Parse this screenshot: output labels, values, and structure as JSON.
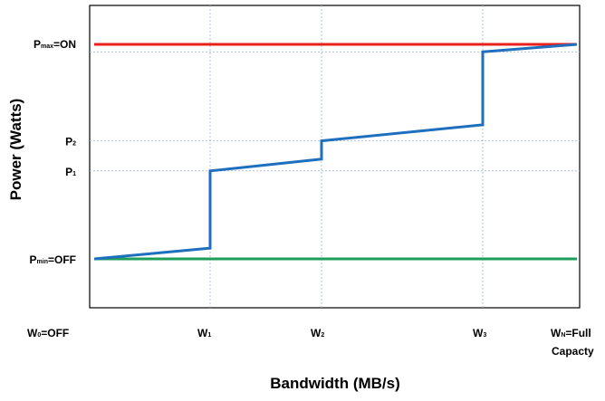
{
  "chart_data": {
    "type": "line",
    "xlabel": "Bandwidth (MB/s)",
    "ylabel": "Power (Watts)",
    "x_ticks": [
      {
        "id": "w0",
        "value": 0,
        "parts": [
          {
            "t": "W"
          },
          {
            "t": "0",
            "sub": true
          },
          {
            "t": "=OFF"
          }
        ]
      },
      {
        "id": "w1",
        "value": 1,
        "parts": [
          {
            "t": "W"
          },
          {
            "t": "1",
            "sub": true
          }
        ]
      },
      {
        "id": "w2",
        "value": 2,
        "parts": [
          {
            "t": "W"
          },
          {
            "t": "2",
            "sub": true
          }
        ]
      },
      {
        "id": "w3",
        "value": 3,
        "parts": [
          {
            "t": "W"
          },
          {
            "t": "3",
            "sub": true
          }
        ]
      },
      {
        "id": "wn",
        "value": 4,
        "parts": [
          {
            "t": "W"
          },
          {
            "t": "N",
            "sub": true
          },
          {
            "t": "=Full"
          }
        ],
        "line2": "Capacty"
      }
    ],
    "y_ticks": [
      {
        "id": "pmin",
        "value": 0,
        "parts": [
          {
            "t": "P"
          },
          {
            "t": "min",
            "sub": true
          },
          {
            "t": "=OFF"
          }
        ]
      },
      {
        "id": "p1",
        "value": 0.41,
        "parts": [
          {
            "t": "P"
          },
          {
            "t": "1",
            "sub": true
          }
        ]
      },
      {
        "id": "p2",
        "value": 0.55,
        "parts": [
          {
            "t": "P"
          },
          {
            "t": "2",
            "sub": true
          }
        ]
      },
      {
        "id": "pmax",
        "value": 1.0,
        "parts": [
          {
            "t": "P"
          },
          {
            "t": "max",
            "sub": true
          },
          {
            "t": "=ON"
          }
        ]
      }
    ],
    "xlim": [
      0,
      4
    ],
    "ylim": [
      -0.23,
      1.17
    ],
    "grid": true,
    "series": [
      {
        "id": "pmax-line",
        "color": "#e8201e",
        "points": [
          [
            0,
            1.0
          ],
          [
            4,
            1.0
          ]
        ]
      },
      {
        "id": "pmin-line",
        "color": "#1e9e5a",
        "points": [
          [
            0,
            0
          ],
          [
            4,
            0
          ]
        ]
      },
      {
        "id": "power-curve",
        "color": "#1f6fbf",
        "points": [
          [
            0,
            0
          ],
          [
            1,
            0.05
          ],
          [
            1,
            0.41
          ],
          [
            2,
            0.465
          ],
          [
            2,
            0.55
          ],
          [
            3,
            0.625
          ],
          [
            3,
            0.965
          ],
          [
            4,
            1.0
          ]
        ]
      }
    ],
    "gridline_color": "#9fb8d8",
    "ygrid_values": [
      0.41,
      0.55,
      0.965
    ],
    "xgrid_values": [
      1,
      2,
      3
    ]
  }
}
